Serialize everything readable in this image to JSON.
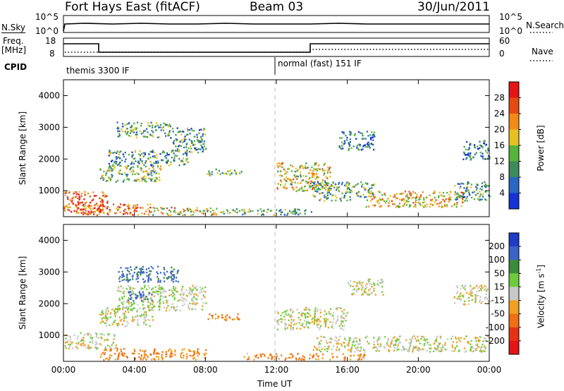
{
  "header": {
    "station": "Fort Hays East (fitACF)",
    "beam": "Beam 03",
    "date": "30/Jun/2011"
  },
  "status_panel": {
    "nsky_label": "N.Sky",
    "nsky_ticks": [
      "10^5",
      "10^0"
    ],
    "nsearch_label": "N.Search",
    "nsearch_ticks": [
      "10^5",
      "10^0"
    ],
    "freq_label": "Freq.",
    "freq_unit": "[MHz]",
    "freq_ticks": [
      "18",
      "8"
    ],
    "nave_label": "Nave",
    "nave_ticks": [
      "60",
      "0"
    ],
    "cpid_label": "CPID",
    "cpid_segments": [
      {
        "label": "themis 3300 IF"
      },
      {
        "label": "normal (fast) 151 IF"
      }
    ]
  },
  "chart_data": [
    {
      "type": "heatmap",
      "title": "",
      "xlabel": "",
      "ylabel": "Slant Range [km]",
      "x_ticks": [
        "00:00",
        "04:00",
        "08:00",
        "12:00",
        "16:00",
        "20:00",
        "00:00"
      ],
      "y_ticks": [
        "1000",
        "2000",
        "3000",
        "4000"
      ],
      "xlim_hours": [
        0,
        24
      ],
      "ylim_km": [
        180,
        4500
      ],
      "colorbar": {
        "label": "Power [dB]",
        "ticks": [
          "4",
          "8",
          "12",
          "16",
          "20",
          "24",
          "28"
        ],
        "colors": [
          "#1433d6",
          "#2a66c4",
          "#3d8a5c",
          "#55b43a",
          "#e6c020",
          "#f28a18",
          "#e64a14",
          "#e61414"
        ]
      },
      "blobs": [
        {
          "t0": 0.0,
          "t1": 2.5,
          "r0": 300,
          "r1": 1000,
          "value": 26
        },
        {
          "t0": 1.0,
          "t1": 5.0,
          "r0": 250,
          "r1": 600,
          "value": 24
        },
        {
          "t0": 2.0,
          "t1": 5.5,
          "r0": 1300,
          "r1": 1800,
          "value": 14
        },
        {
          "t0": 2.5,
          "t1": 7.0,
          "r0": 1800,
          "r1": 2300,
          "value": 10
        },
        {
          "t0": 3.0,
          "t1": 6.0,
          "r0": 2700,
          "r1": 3200,
          "value": 12
        },
        {
          "t0": 6.0,
          "t1": 8.0,
          "r0": 2200,
          "r1": 3000,
          "value": 10
        },
        {
          "t0": 5.0,
          "t1": 9.0,
          "r0": 250,
          "r1": 500,
          "value": 18
        },
        {
          "t0": 8.0,
          "t1": 10.0,
          "r0": 1500,
          "r1": 1700,
          "value": 12
        },
        {
          "t0": 9.0,
          "t1": 14.0,
          "r0": 250,
          "r1": 450,
          "value": 12
        },
        {
          "t0": 12.0,
          "t1": 15.0,
          "r0": 1000,
          "r1": 1900,
          "value": 18
        },
        {
          "t0": 14.0,
          "t1": 17.5,
          "r0": 700,
          "r1": 1300,
          "value": 12
        },
        {
          "t0": 17.0,
          "t1": 22.5,
          "r0": 500,
          "r1": 1000,
          "value": 20
        },
        {
          "t0": 22.0,
          "t1": 24.0,
          "r0": 700,
          "r1": 1300,
          "value": 10
        },
        {
          "t0": 15.5,
          "t1": 17.5,
          "r0": 2300,
          "r1": 2900,
          "value": 8
        },
        {
          "t0": 22.5,
          "t1": 24.0,
          "r0": 2000,
          "r1": 2600,
          "value": 8
        }
      ]
    },
    {
      "type": "heatmap",
      "title": "",
      "xlabel": "Time UT",
      "ylabel": "Slant Range [km]",
      "x_ticks": [
        "00:00",
        "04:00",
        "08:00",
        "12:00",
        "16:00",
        "20:00",
        "00:00"
      ],
      "y_ticks": [
        "1000",
        "2000",
        "3000",
        "4000"
      ],
      "xlim_hours": [
        0,
        24
      ],
      "ylim_km": [
        180,
        4500
      ],
      "colorbar": {
        "label": "Velocity [m s-1]",
        "ticks": [
          "200",
          "100",
          "50",
          "15",
          "-15",
          "-50",
          "-100",
          "-200"
        ],
        "colors": [
          "#1e3cc8",
          "#3c64c8",
          "#3a8c3a",
          "#6ccc3c",
          "#c8c8c8",
          "#f0a020",
          "#f06e14",
          "#e63214",
          "#e61414"
        ]
      },
      "blobs": [
        {
          "t0": 0.0,
          "t1": 3.0,
          "r0": 600,
          "r1": 1100,
          "value": 0
        },
        {
          "t0": 2.0,
          "t1": 5.0,
          "r0": 1300,
          "r1": 1900,
          "value": 5
        },
        {
          "t0": 3.0,
          "t1": 8.0,
          "r0": 1800,
          "r1": 2600,
          "value": 10
        },
        {
          "t0": 3.5,
          "t1": 5.0,
          "r0": 2100,
          "r1": 2400,
          "value": 150
        },
        {
          "t0": 3.0,
          "t1": 6.5,
          "r0": 2700,
          "r1": 3200,
          "value": 120
        },
        {
          "t0": 2.0,
          "t1": 8.0,
          "r0": 250,
          "r1": 600,
          "value": -60
        },
        {
          "t0": 8.0,
          "t1": 10.0,
          "r0": 1500,
          "r1": 1700,
          "value": -60
        },
        {
          "t0": 12.0,
          "t1": 16.0,
          "r0": 1200,
          "r1": 1900,
          "value": 0
        },
        {
          "t0": 14.0,
          "t1": 24.0,
          "r0": 500,
          "r1": 1000,
          "value": 0
        },
        {
          "t0": 10.0,
          "t1": 17.0,
          "r0": 250,
          "r1": 450,
          "value": -50
        },
        {
          "t0": 16.0,
          "t1": 18.0,
          "r0": 2300,
          "r1": 2800,
          "value": 0
        },
        {
          "t0": 22.0,
          "t1": 24.0,
          "r0": 2000,
          "r1": 2600,
          "value": 0
        }
      ]
    }
  ]
}
